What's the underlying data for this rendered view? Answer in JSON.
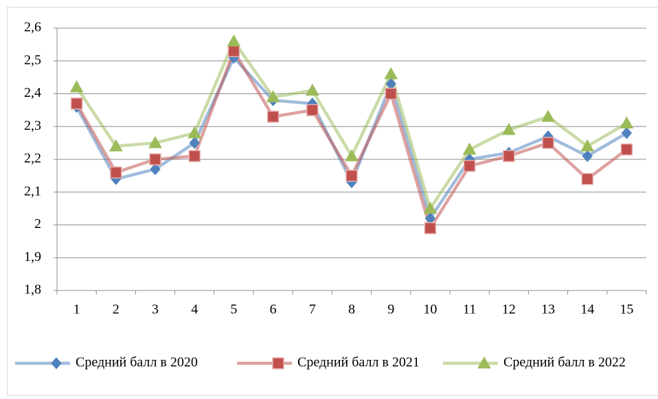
{
  "chart_data": {
    "type": "line",
    "categories": [
      "1",
      "2",
      "3",
      "4",
      "5",
      "6",
      "7",
      "8",
      "9",
      "10",
      "11",
      "12",
      "13",
      "14",
      "15"
    ],
    "series": [
      {
        "name": "Средний балл в 2020",
        "color": "#4f81bd",
        "values": [
          2.36,
          2.14,
          2.17,
          2.25,
          2.51,
          2.38,
          2.37,
          2.13,
          2.43,
          2.02,
          2.2,
          2.22,
          2.27,
          2.21,
          2.28
        ]
      },
      {
        "name": "Средний балл в 2021",
        "color": "#c0504d",
        "values": [
          2.37,
          2.16,
          2.2,
          2.21,
          2.53,
          2.33,
          2.35,
          2.15,
          2.4,
          1.99,
          2.18,
          2.21,
          2.25,
          2.14,
          2.23
        ]
      },
      {
        "name": "Средний балл в 2022",
        "color": "#9bbb59",
        "values": [
          2.42,
          2.24,
          2.25,
          2.28,
          2.56,
          2.39,
          2.41,
          2.21,
          2.46,
          2.05,
          2.23,
          2.29,
          2.33,
          2.24,
          2.31
        ]
      }
    ],
    "ylim": [
      1.8,
      2.6
    ],
    "yticks": [
      {
        "value": 1.8,
        "label": "1,8"
      },
      {
        "value": 1.9,
        "label": "1,9"
      },
      2,
      {
        "value": 2.1,
        "label": "2,1"
      },
      {
        "value": 2.2,
        "label": "2,2"
      },
      {
        "value": 2.3,
        "label": "2,3"
      },
      {
        "value": 2.4,
        "label": "2,4"
      },
      {
        "value": 2.5,
        "label": "2,5"
      },
      {
        "value": 2.6,
        "label": "2,6"
      }
    ],
    "grid": true,
    "legend": "bottom"
  }
}
